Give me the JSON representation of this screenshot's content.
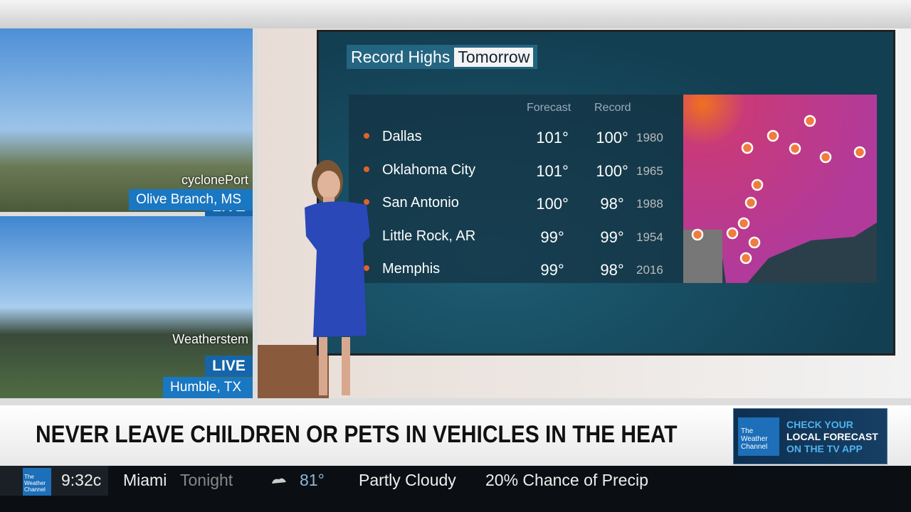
{
  "cameras": [
    {
      "label": "cyclonePort",
      "live": "LIVE",
      "location": "Olive Branch, MS"
    },
    {
      "label": "Weatherstem",
      "live": "LIVE",
      "location": "Humble, TX"
    }
  ],
  "board": {
    "title": "Record Highs",
    "title_highlight": "Tomorrow",
    "headers": [
      "Forecast",
      "Record"
    ],
    "rows": [
      {
        "city": "Dallas",
        "forecast": "101°",
        "record": "100°",
        "year": "1980"
      },
      {
        "city": "Oklahoma City",
        "forecast": "101°",
        "record": "100°",
        "year": "1965"
      },
      {
        "city": "San Antonio",
        "forecast": "100°",
        "record": "98°",
        "year": "1988"
      },
      {
        "city": "Little Rock, AR",
        "forecast": "99°",
        "record": "99°",
        "year": "1954"
      },
      {
        "city": "Memphis",
        "forecast": "99°",
        "record": "98°",
        "year": "2016"
      }
    ]
  },
  "headline": "NEVER LEAVE CHILDREN OR PETS IN VEHICLES IN THE HEAT",
  "promo": {
    "logo": "The Weather Channel",
    "lines": [
      "CHECK YOUR",
      "LOCAL FORECAST",
      "ON THE TV APP"
    ]
  },
  "ticker": {
    "logo": "The Weather Channel",
    "time": "9:32c",
    "city": "Miami",
    "period": "Tonight",
    "temp": "81°",
    "condition": "Partly Cloudy",
    "precip": "20% Chance of Precip"
  }
}
